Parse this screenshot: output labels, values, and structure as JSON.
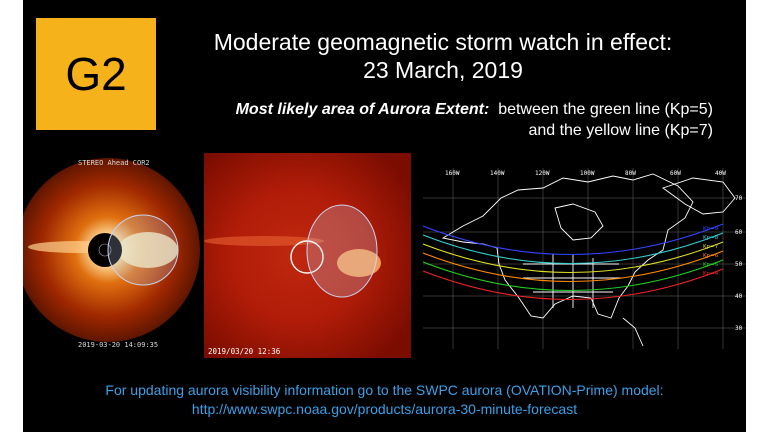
{
  "badge": {
    "label": "G2",
    "color": "#f5b21a"
  },
  "title": {
    "line1": "Moderate geomagnetic storm watch in effect:",
    "line2": "23 March, 2019"
  },
  "extent": {
    "label": "Most likely area of Aurora Extent:",
    "line1_rest": "between the green line (Kp=5)",
    "line2": "and the yellow line (Kp=7)"
  },
  "images": {
    "cor2": {
      "header": "STEREO Ahead COR2",
      "timestamp": "2019-03-20 14:09:35"
    },
    "lasco": {
      "timestamp": "2019/03/20 12:36"
    },
    "map": {
      "longitudes": [
        "160W",
        "140W",
        "120W",
        "100W",
        "80W",
        "60W",
        "40W"
      ],
      "latitudes": [
        "70",
        "60",
        "50",
        "40",
        "30"
      ],
      "kp_lines": [
        {
          "label": "Kp=9",
          "color": "#3344ff"
        },
        {
          "label": "Kp=8",
          "color": "#33cccc"
        },
        {
          "label": "Kp=7",
          "color": "#dddd22"
        },
        {
          "label": "Kp=6",
          "color": "#ff8800"
        },
        {
          "label": "Kp=5",
          "color": "#22cc22"
        },
        {
          "label": "Kp=4",
          "color": "#ee2222"
        }
      ]
    }
  },
  "footer": {
    "line1": "For updating aurora visibility information go to the SWPC aurora (OVATION-Prime) model:",
    "line2": "http://www.swpc.noaa.gov/products/aurora-30-minute-forecast",
    "color": "#3aa0e8"
  }
}
